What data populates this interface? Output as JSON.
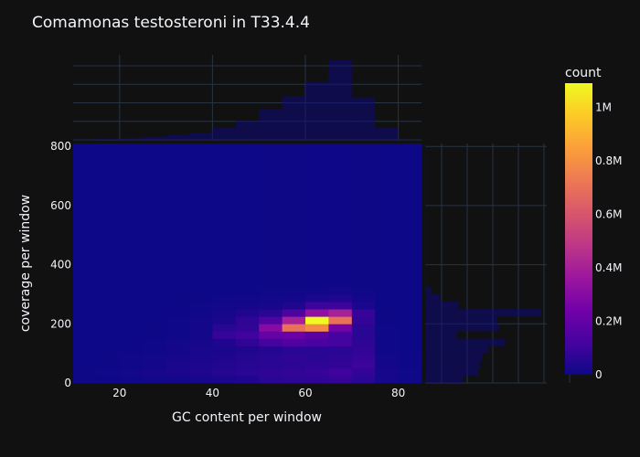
{
  "chart_data": {
    "type": "heatmap",
    "title": "Comamonas testosteroni in T33.4.4",
    "xlabel": "GC content per window",
    "ylabel": "coverage per window",
    "xlim": [
      10,
      85
    ],
    "ylim": [
      0,
      810
    ],
    "x_ticks": [
      "20",
      "40",
      "60",
      "80"
    ],
    "y_ticks": [
      "0",
      "200",
      "400",
      "600",
      "800"
    ],
    "x_bins": [
      10,
      15,
      20,
      25,
      30,
      35,
      40,
      45,
      50,
      55,
      60,
      65,
      70,
      75,
      80,
      85
    ],
    "y_bins": [
      0,
      25,
      50,
      75,
      100,
      125,
      150,
      175,
      200,
      225,
      250,
      275,
      300,
      325,
      810
    ],
    "z_counts": [
      [
        2000,
        3000,
        5000,
        10000,
        15000,
        20000,
        30000,
        40000,
        60000,
        70000,
        75000,
        90000,
        60000,
        20000,
        5000
      ],
      [
        2000,
        4000,
        10000,
        20000,
        30000,
        40000,
        50000,
        60000,
        70000,
        80000,
        90000,
        110000,
        80000,
        20000,
        4000
      ],
      [
        1000,
        3000,
        8000,
        15000,
        25000,
        35000,
        45000,
        55000,
        60000,
        65000,
        70000,
        80000,
        100000,
        15000,
        3000
      ],
      [
        1000,
        2000,
        6000,
        12000,
        20000,
        30000,
        40000,
        50000,
        60000,
        70000,
        60000,
        70000,
        90000,
        10000,
        2000
      ],
      [
        500,
        1000,
        3000,
        8000,
        15000,
        25000,
        30000,
        40000,
        50000,
        60000,
        60000,
        60000,
        80000,
        8000,
        1000
      ],
      [
        500,
        1000,
        2000,
        5000,
        10000,
        20000,
        40000,
        70000,
        120000,
        150000,
        130000,
        120000,
        70000,
        5000,
        1000
      ],
      [
        500,
        500,
        1000,
        3000,
        8000,
        15000,
        90000,
        110000,
        200000,
        220000,
        170000,
        120000,
        60000,
        5000,
        500
      ],
      [
        500,
        500,
        1000,
        2000,
        5000,
        10000,
        60000,
        80000,
        300000,
        700000,
        780000,
        250000,
        60000,
        4000,
        500
      ],
      [
        500,
        500,
        1000,
        2000,
        5000,
        10000,
        30000,
        70000,
        150000,
        400000,
        1090000,
        700000,
        80000,
        3000,
        500
      ],
      [
        500,
        500,
        500,
        1000,
        3000,
        8000,
        20000,
        40000,
        60000,
        140000,
        330000,
        400000,
        90000,
        2000,
        500
      ],
      [
        500,
        500,
        500,
        1000,
        2000,
        5000,
        10000,
        15000,
        20000,
        40000,
        100000,
        100000,
        30000,
        1000,
        500
      ],
      [
        500,
        500,
        500,
        1000,
        1000,
        2000,
        5000,
        8000,
        10000,
        15000,
        30000,
        40000,
        15000,
        1000,
        500
      ],
      [
        500,
        500,
        500,
        500,
        1000,
        1000,
        2000,
        3000,
        5000,
        6000,
        8000,
        10000,
        5000,
        500,
        500
      ],
      [
        500,
        500,
        500,
        500,
        500,
        500,
        1000,
        1000,
        2000,
        2000,
        3000,
        3000,
        2000,
        500,
        500
      ]
    ],
    "x_marginal_counts": [
      1000,
      3000,
      6000,
      12000,
      20000,
      30000,
      50000,
      80000,
      130000,
      185000,
      248000,
      338000,
      180000,
      50000,
      1000
    ],
    "y_marginal_counts": [
      18000,
      25000,
      26000,
      27000,
      30000,
      38000,
      15000,
      35000,
      34000,
      55000,
      16000,
      7000,
      3000,
      500
    ],
    "colorbar": {
      "title": "count",
      "min": 0,
      "max": 1090000,
      "ticks": [
        {
          "value": 0,
          "label": "0"
        },
        {
          "value": 200000,
          "label": "0.2M"
        },
        {
          "value": 400000,
          "label": "0.4M"
        },
        {
          "value": 600000,
          "label": "0.6M"
        },
        {
          "value": 800000,
          "label": "0.8M"
        },
        {
          "value": 1000000,
          "label": "1M"
        }
      ],
      "colors": [
        "#0d0887",
        "#46039f",
        "#7201a8",
        "#9c179e",
        "#bd3786",
        "#d8576b",
        "#ed7953",
        "#fb9f3a",
        "#fdca26",
        "#f0f921"
      ]
    },
    "grid": true,
    "legend": "right"
  }
}
